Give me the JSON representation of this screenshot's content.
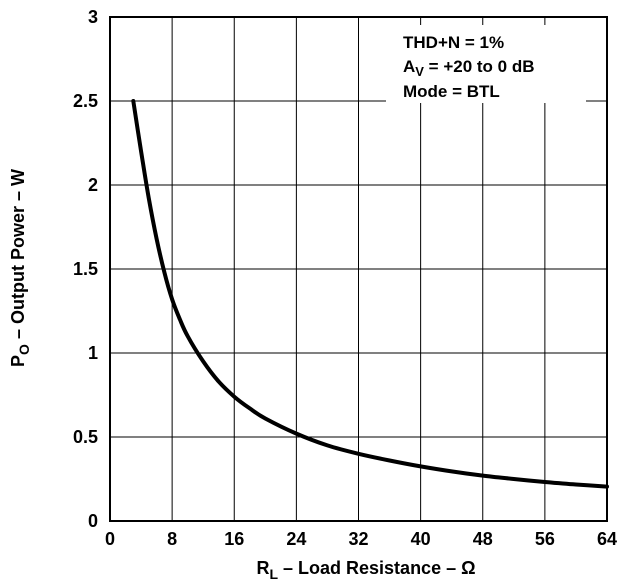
{
  "chart_data": {
    "type": "line",
    "title": "",
    "xlabel": {
      "main": "R",
      "sub": "L",
      "rest": " – Load Resistance – Ω"
    },
    "ylabel": {
      "main": "P",
      "sub": "O",
      "rest": " – Output Power – W"
    },
    "xlim": [
      0,
      64
    ],
    "ylim": [
      0,
      3
    ],
    "x_ticks": [
      "0",
      "8",
      "16",
      "24",
      "32",
      "40",
      "48",
      "56",
      "64"
    ],
    "y_ticks": [
      "0",
      "0.5",
      "1",
      "1.5",
      "2",
      "2.5",
      "3"
    ],
    "grid": true,
    "annotations": {
      "line1": "THD+N = 1%",
      "line2": {
        "main": "A",
        "sub": "V",
        "rest": " = +20 to 0 dB"
      },
      "line3": "Mode = BTL"
    },
    "series": [
      {
        "x": [
          3,
          4,
          5,
          6,
          7,
          8,
          9,
          10,
          12,
          14,
          16,
          18,
          20,
          24,
          28,
          32,
          36,
          40,
          44,
          48,
          52,
          56,
          60,
          64
        ],
        "y": [
          2.5,
          2.2,
          1.92,
          1.68,
          1.48,
          1.32,
          1.2,
          1.1,
          0.95,
          0.83,
          0.74,
          0.67,
          0.61,
          0.52,
          0.45,
          0.4,
          0.36,
          0.325,
          0.295,
          0.27,
          0.25,
          0.232,
          0.217,
          0.205
        ]
      }
    ]
  }
}
